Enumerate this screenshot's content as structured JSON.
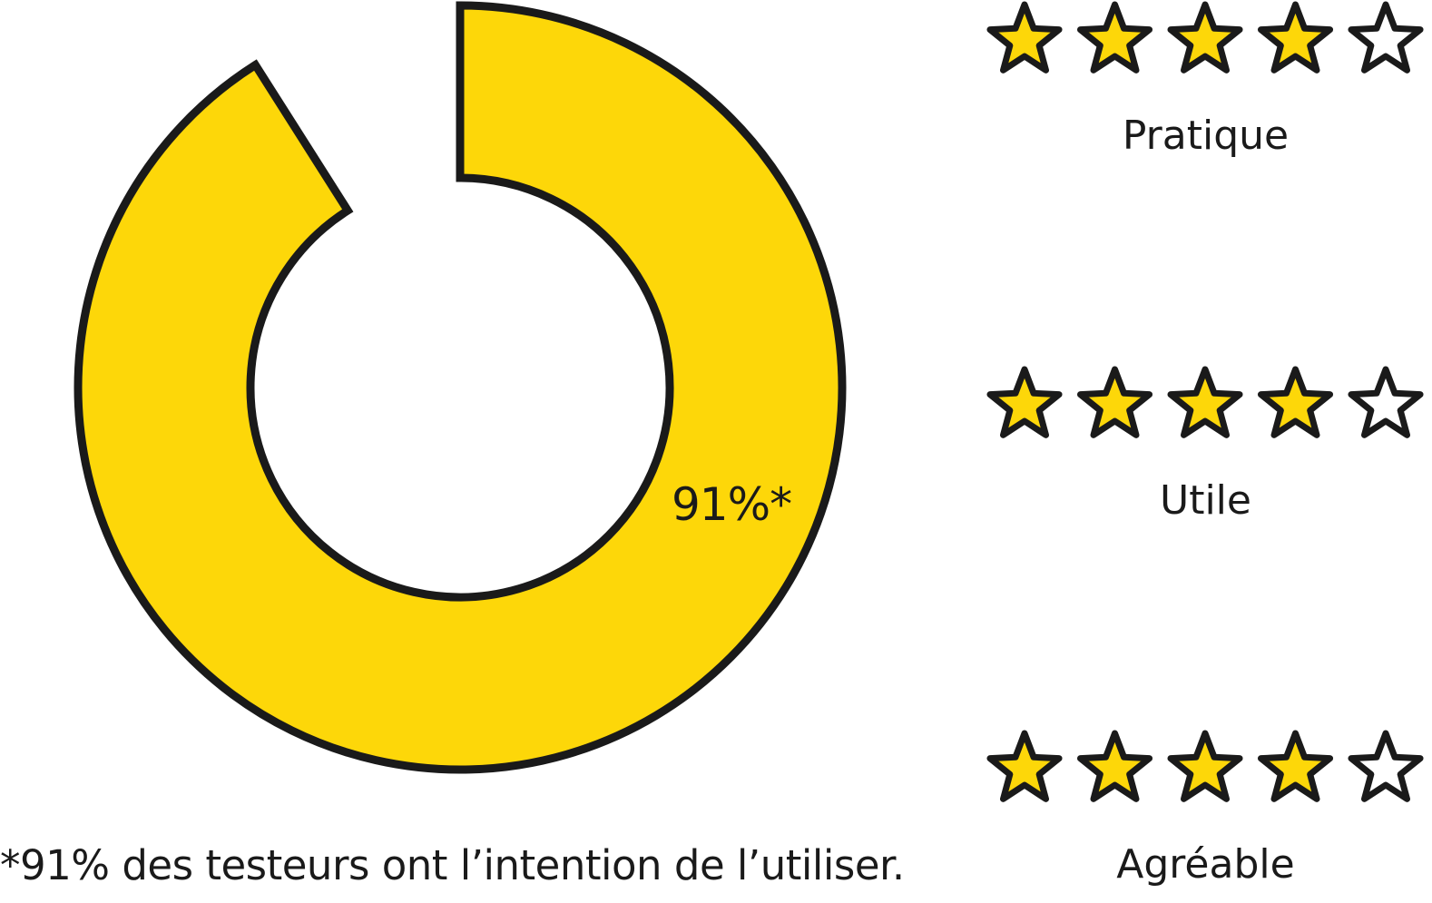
{
  "chart_data": {
    "type": "pie",
    "value_percent": 91,
    "center_label": "91%*",
    "footnote": "*91% des testeurs ont l’intention de l’utiliser.",
    "fill_color": "#FDD709",
    "outline_color": "#1a1a1a"
  },
  "ratings": [
    {
      "label": "Pratique",
      "stars": 4,
      "max_stars": 5
    },
    {
      "label": "Utile",
      "stars": 4,
      "max_stars": 5
    },
    {
      "label": "Agréable",
      "stars": 4,
      "max_stars": 5
    }
  ],
  "colors": {
    "star_fill": "#FDD709",
    "star_empty": "#ffffff",
    "outline": "#1a1a1a",
    "text": "#1a1a1a"
  }
}
